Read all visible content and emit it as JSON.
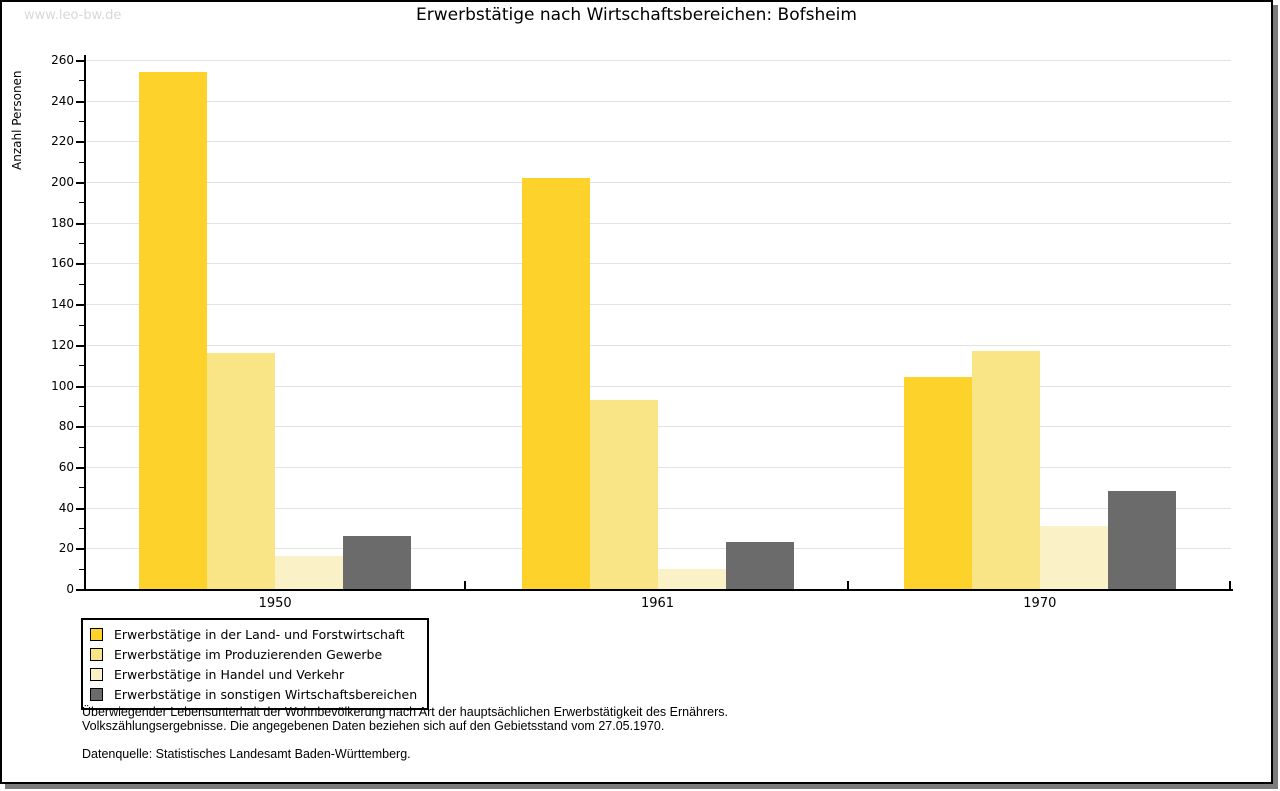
{
  "watermark": "www.leo-bw.de",
  "chart_data": {
    "type": "bar",
    "title": "Erwerbstätige nach Wirtschaftsbereichen: Bofsheim",
    "ylabel": "Anzahl Personen",
    "xlabel": "",
    "categories": [
      "1950",
      "1961",
      "1970"
    ],
    "series": [
      {
        "name": "Erwerbstätige in der Land- und Forstwirtschaft",
        "color": "#fcd22b",
        "values": [
          254,
          202,
          104
        ]
      },
      {
        "name": "Erwerbstätige im Produzierenden Gewerbe",
        "color": "#fae586",
        "values": [
          116,
          93,
          117
        ]
      },
      {
        "name": "Erwerbstätige in Handel und Verkehr",
        "color": "#faf1c6",
        "values": [
          16,
          10,
          31
        ]
      },
      {
        "name": "Erwerbstätige in sonstigen Wirtschaftsbereichen",
        "color": "#6b6b6b",
        "values": [
          26,
          23,
          48
        ]
      }
    ],
    "ylim": [
      0,
      260
    ],
    "ytick_major_step": 20,
    "ytick_minor_step": 10,
    "grid": true,
    "gridline_color": "#e2e2e2",
    "legend_position": "bottom-left"
  },
  "footnotes": [
    "Überwiegender Lebensunterhalt der Wohnbevölkerung nach Art der hauptsächlichen Erwerbstätigkeit des Ernährers.",
    "Volkszählungsergebnisse. Die angegebenen Daten beziehen sich auf den Gebietsstand vom 27.05.1970.",
    "Datenquelle: Statistisches Landesamt Baden-Württemberg."
  ]
}
